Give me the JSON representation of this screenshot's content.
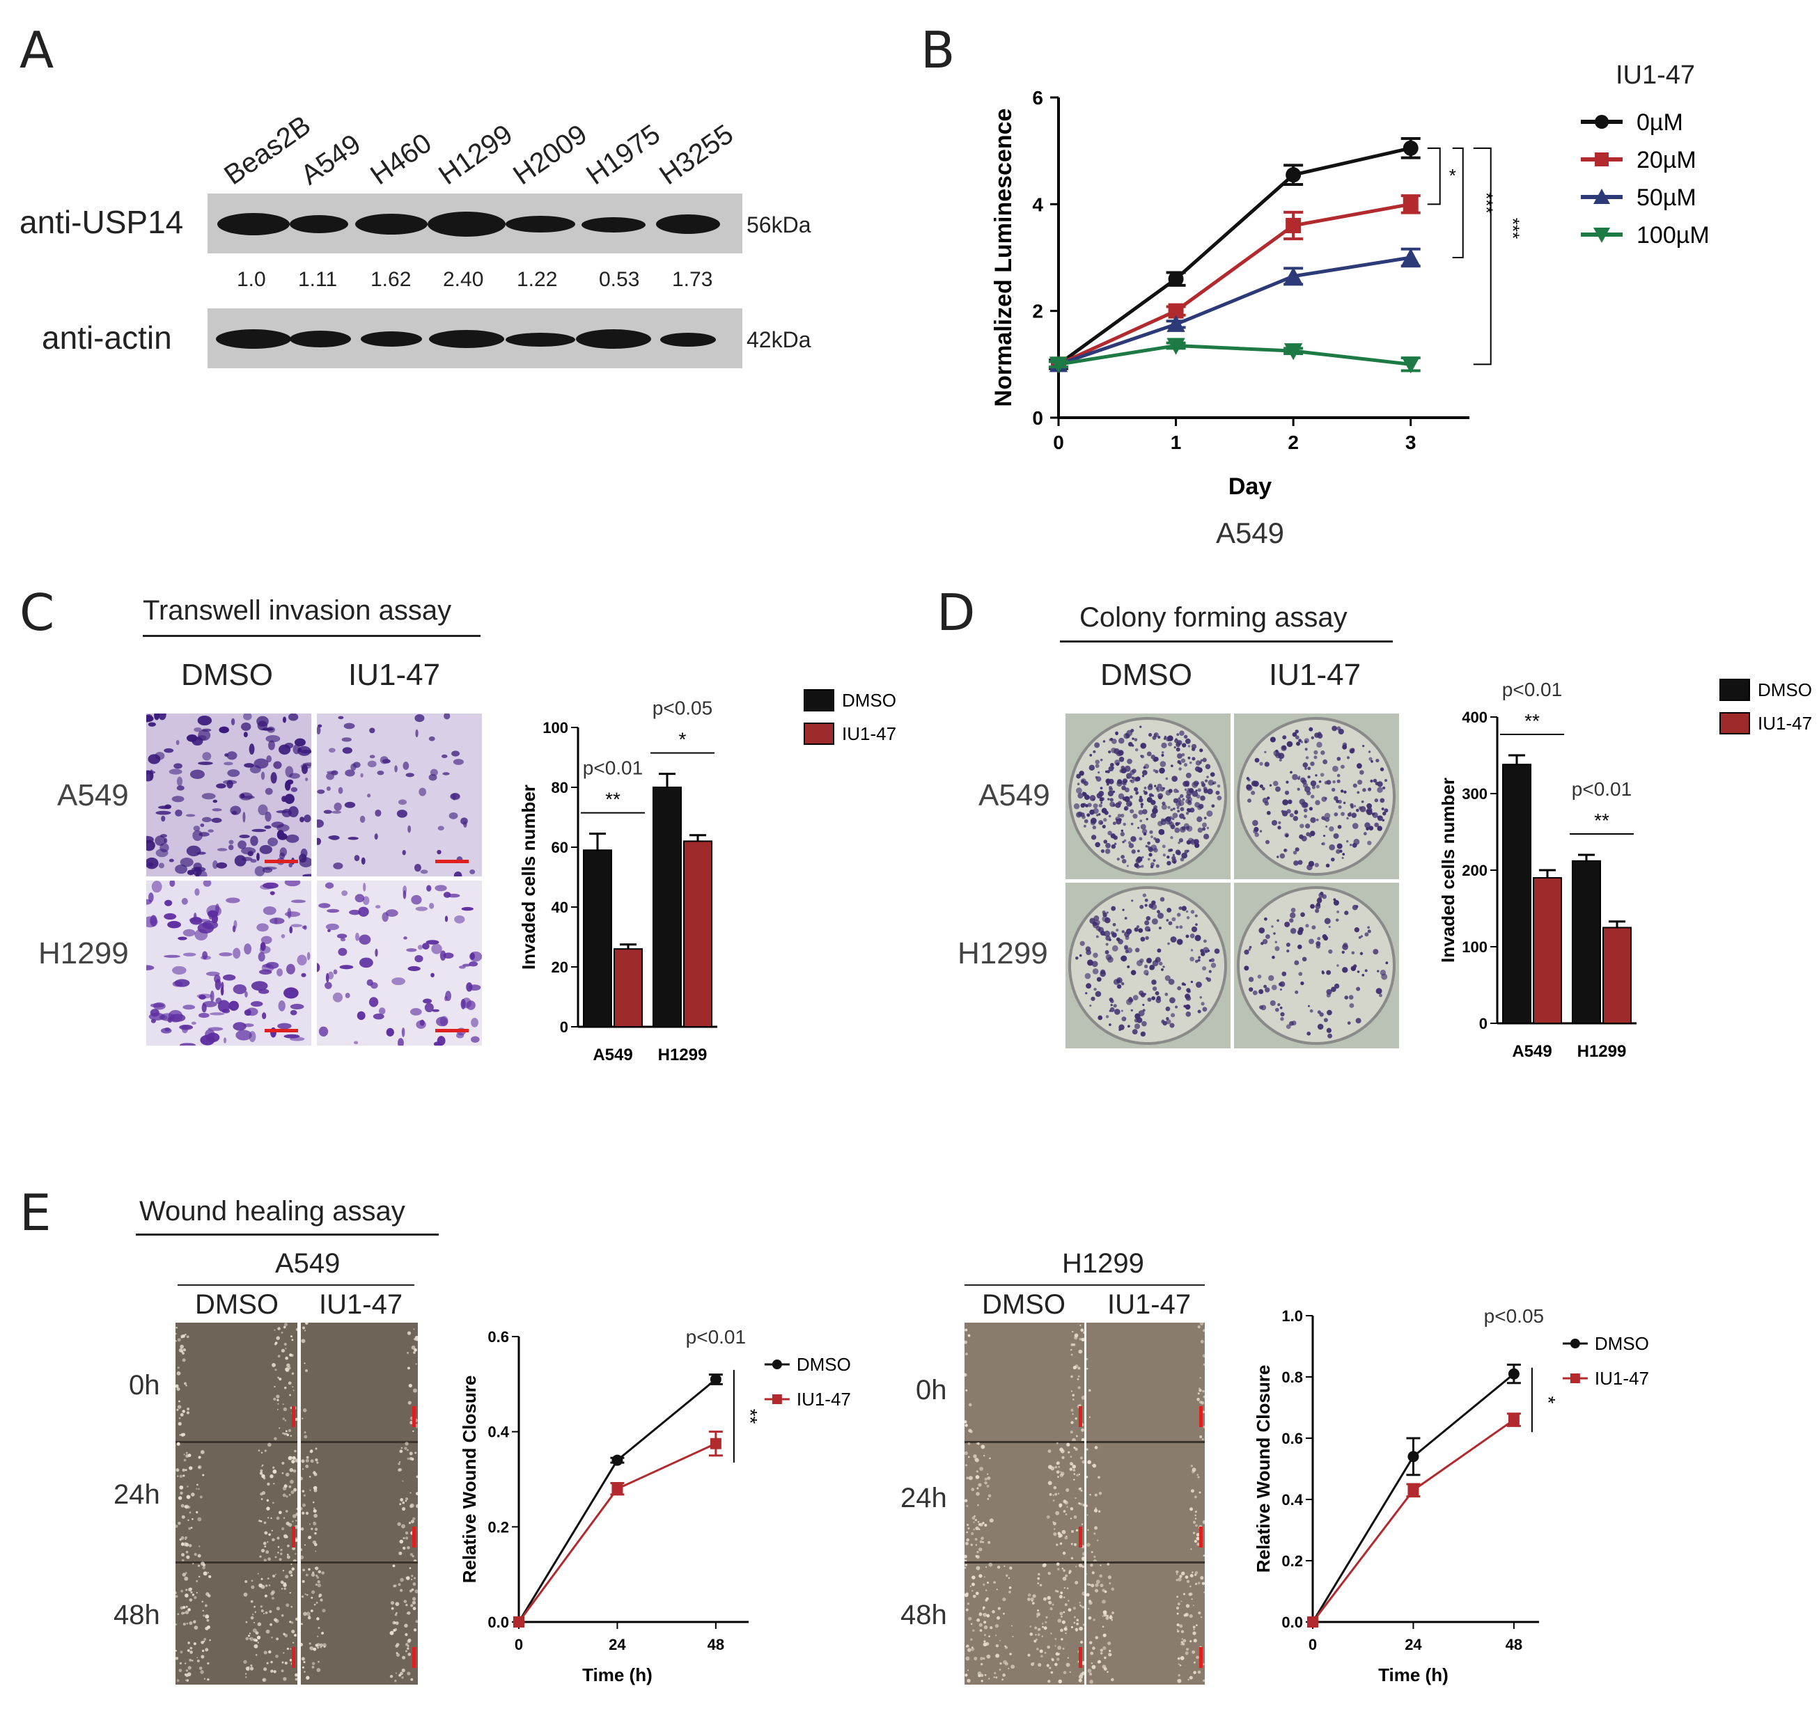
{
  "panels": {
    "a": "A",
    "b": "B",
    "c": "C",
    "d": "D",
    "e": "E"
  },
  "panelA": {
    "cell_lines": [
      "Beas2B",
      "A549",
      "H460",
      "H1299",
      "H2009",
      "H1975",
      "H3255"
    ],
    "row1_label": "anti-USP14",
    "row1_kda": "56kDa",
    "quant": [
      "1.0",
      "1.11",
      "1.62",
      "2.40",
      "1.22",
      "0.53",
      "1.73"
    ],
    "row2_label": "anti-actin",
    "row2_kda": "42kDa"
  },
  "panelC": {
    "title": "Transwell invasion assay",
    "col_dmso": "DMSO",
    "col_iu": "IU1-47",
    "row_a549": "A549",
    "row_h1299": "H1299"
  },
  "panelD": {
    "title": "Colony forming assay",
    "col_dmso": "DMSO",
    "col_iu": "IU1-47",
    "row_a549": "A549",
    "row_h1299": "H1299"
  },
  "panelE": {
    "title": "Wound healing assay",
    "a549_header": "A549",
    "h1299_header": "H1299",
    "col_dmso": "DMSO",
    "col_iu": "IU1-47",
    "times": [
      "0h",
      "24h",
      "48h"
    ]
  },
  "colors": {
    "black": "#111111",
    "red": "#b22a2e",
    "blue": "#2c3a78",
    "green": "#1e7a45",
    "crystal": "#5a2d91"
  },
  "chart_data": [
    {
      "id": "B",
      "type": "line",
      "x": [
        0,
        1,
        2,
        3
      ],
      "series": [
        {
          "name": "0µM",
          "values": [
            1.0,
            2.6,
            4.55,
            5.05
          ],
          "err": [
            0.08,
            0.12,
            0.18,
            0.18
          ],
          "color": "#111111",
          "marker": "circle"
        },
        {
          "name": "20µM",
          "values": [
            1.0,
            2.0,
            3.6,
            4.0
          ],
          "err": [
            0.06,
            0.08,
            0.25,
            0.16
          ],
          "color": "#b22a2e",
          "marker": "square"
        },
        {
          "name": "50µM",
          "values": [
            1.0,
            1.75,
            2.65,
            3.0
          ],
          "err": [
            0.06,
            0.06,
            0.15,
            0.16
          ],
          "color": "#2c3a78",
          "marker": "triangle-up"
        },
        {
          "name": "100µM",
          "values": [
            1.0,
            1.35,
            1.25,
            1.0
          ],
          "err": [
            0.05,
            0.05,
            0.05,
            0.12
          ],
          "color": "#1e7a45",
          "marker": "triangle-down"
        }
      ],
      "xlabel": "Day",
      "ylabel": "Normalized Luminescence",
      "subtitle": "A549",
      "legend_title": "IU1-47",
      "xlim": [
        0,
        3.5
      ],
      "ylim": [
        0,
        6
      ],
      "xticks": [
        "0",
        "1",
        "2",
        "3"
      ],
      "yticks": [
        "0",
        "2",
        "4",
        "6"
      ],
      "significance": [
        "*",
        "***",
        "***"
      ],
      "legend": "right"
    },
    {
      "id": "C",
      "type": "bar",
      "categories": [
        "A549",
        "H1299"
      ],
      "series": [
        {
          "name": "DMSO",
          "values": [
            59,
            80
          ],
          "err": [
            5.5,
            4.5
          ],
          "color": "#111111"
        },
        {
          "name": "IU1-47",
          "values": [
            26,
            62
          ],
          "err": [
            1.5,
            2.0
          ],
          "color": "#9e2a2b"
        }
      ],
      "ylabel": "Invaded cells number",
      "ylim": [
        0,
        100
      ],
      "yticks": [
        "0",
        "20",
        "40",
        "60",
        "80",
        "100"
      ],
      "pvalues": [
        "p<0.01",
        "p<0.05"
      ],
      "stars": [
        "**",
        "*"
      ],
      "legend": "top-right"
    },
    {
      "id": "D",
      "type": "bar",
      "categories": [
        "A549",
        "H1299"
      ],
      "series": [
        {
          "name": "DMSO",
          "values": [
            338,
            212
          ],
          "err": [
            12,
            8
          ],
          "color": "#111111"
        },
        {
          "name": "IU1-47",
          "values": [
            190,
            125
          ],
          "err": [
            10,
            8
          ],
          "color": "#9e2a2b"
        }
      ],
      "ylabel": "Invaded cells number",
      "ylim": [
        0,
        400
      ],
      "yticks": [
        "0",
        "100",
        "200",
        "300",
        "400"
      ],
      "pvalues": [
        "p<0.01",
        "p<0.01"
      ],
      "stars": [
        "**",
        "**"
      ],
      "legend": "top-right"
    },
    {
      "id": "E1",
      "type": "line",
      "x": [
        0,
        24,
        48
      ],
      "series": [
        {
          "name": "DMSO",
          "values": [
            0,
            0.34,
            0.51
          ],
          "err": [
            0,
            0.005,
            0.01
          ],
          "color": "#111111",
          "marker": "circle"
        },
        {
          "name": "IU1-47",
          "values": [
            0,
            0.28,
            0.375
          ],
          "err": [
            0,
            0.012,
            0.025
          ],
          "color": "#b22a2e",
          "marker": "square"
        }
      ],
      "xlabel": "Time (h)",
      "ylabel": "Relative Wound Closure",
      "xlim": [
        0,
        56
      ],
      "ylim": [
        0,
        0.6
      ],
      "xticks": [
        "0",
        "24",
        "48"
      ],
      "yticks": [
        "0.0",
        "0.2",
        "0.4",
        "0.6"
      ],
      "pvalue": "p<0.01",
      "stars": "**",
      "legend": "top-right"
    },
    {
      "id": "E2",
      "type": "line",
      "x": [
        0,
        24,
        48
      ],
      "series": [
        {
          "name": "DMSO",
          "values": [
            0,
            0.54,
            0.81
          ],
          "err": [
            0,
            0.06,
            0.03
          ],
          "color": "#111111",
          "marker": "circle"
        },
        {
          "name": "IU1-47",
          "values": [
            0,
            0.43,
            0.66
          ],
          "err": [
            0,
            0.02,
            0.02
          ],
          "color": "#b22a2e",
          "marker": "square"
        }
      ],
      "xlabel": "Time (h)",
      "ylabel": "Relative Wound Closure",
      "xlim": [
        0,
        54
      ],
      "ylim": [
        0,
        1.0
      ],
      "xticks": [
        "0",
        "24",
        "48"
      ],
      "yticks": [
        "0.0",
        "0.2",
        "0.4",
        "0.6",
        "0.8",
        "1.0"
      ],
      "pvalue": "p<0.05",
      "stars": "*",
      "legend": "top-right"
    }
  ]
}
